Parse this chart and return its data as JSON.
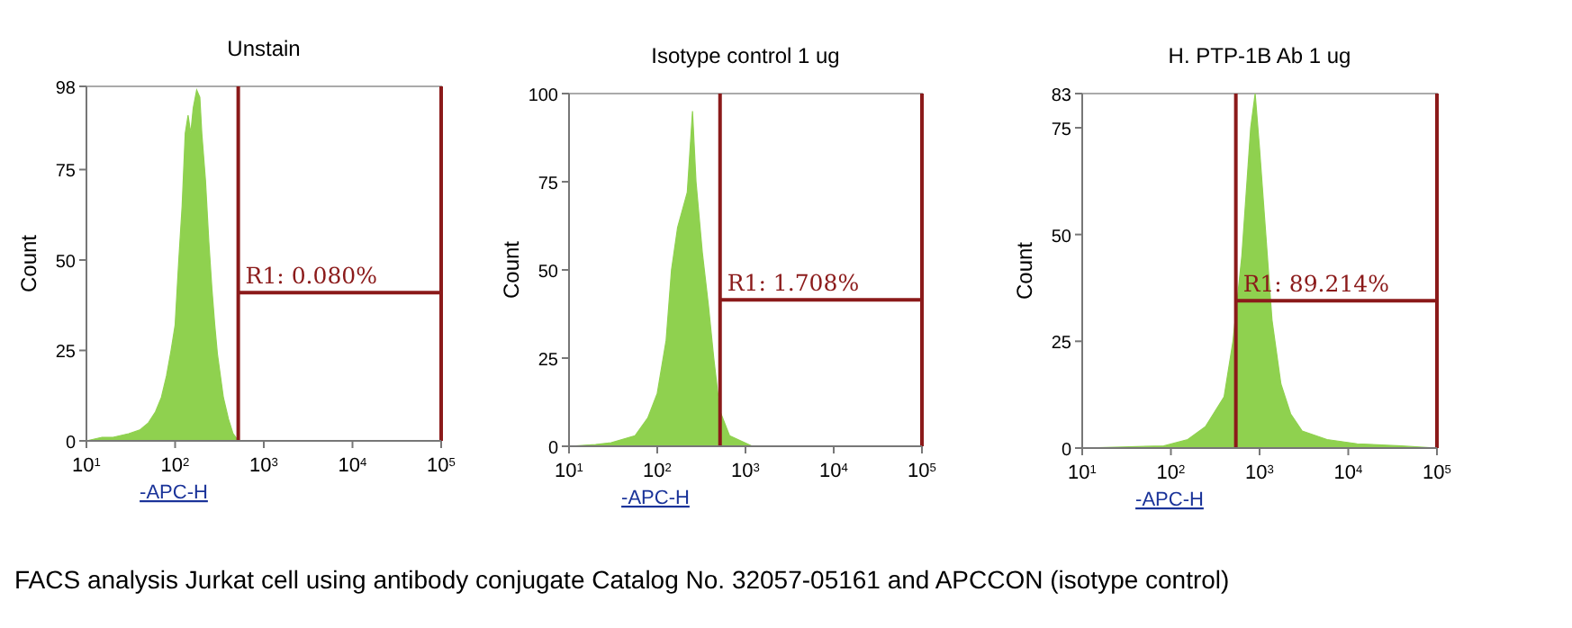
{
  "chart_data": [
    {
      "type": "area",
      "title": "Unstain",
      "xlabel": "-APC-H",
      "ylabel": "Count",
      "log": "x",
      "grid": false,
      "xlim": [
        10,
        100000
      ],
      "ylim": [
        0,
        98
      ],
      "xticks": [
        {
          "value": 10,
          "label": "10$^{1}$"
        },
        {
          "value": 100,
          "label": "10$^{2}$"
        },
        {
          "value": 1000,
          "label": "10$^{3}$"
        },
        {
          "value": 10000,
          "label": "10$^{4}$"
        },
        {
          "value": 100000,
          "label": "10$^{5}$"
        }
      ],
      "yticks": [
        0,
        25,
        50,
        75,
        98
      ],
      "series": [
        {
          "color": "#8fd14f",
          "x": [
            10,
            15,
            20,
            30,
            40,
            50,
            60,
            70,
            80,
            90,
            100,
            110,
            120,
            130,
            140,
            150,
            160,
            175,
            190,
            200,
            220,
            240,
            260,
            280,
            300,
            350,
            400,
            450,
            500,
            550
          ],
          "values": [
            0,
            1,
            1,
            2,
            3,
            5,
            8,
            12,
            18,
            25,
            32,
            50,
            65,
            85,
            90,
            85,
            92,
            97,
            95,
            85,
            72,
            55,
            42,
            32,
            24,
            12,
            6,
            2,
            0.5,
            0
          ]
        },
        {
          "type": "line",
          "color": "#8b1a1a",
          "x": [
            515,
            100000
          ],
          "values": [
            41,
            41
          ]
        }
      ],
      "ref_lines": [
        {
          "axis": "x",
          "value": 515,
          "color": "#8b1a1a"
        },
        {
          "axis": "x",
          "value": 100000,
          "color": "#8b1a1a"
        }
      ],
      "annotations": [
        "R1: 0.080%",
        "FACS analysis Jurkat cell using antibody conjugate Catalog No. 32057-05161 and APCCON (isotype control)"
      ]
    },
    {
      "type": "area",
      "title": "Isotype control 1 ug",
      "xlabel": "-APC-H",
      "ylabel": "Count",
      "log": "x",
      "grid": false,
      "xlim": [
        10,
        100000
      ],
      "ylim": [
        0,
        100
      ],
      "xticks": [
        {
          "value": 10,
          "label": "10$^{1}$"
        },
        {
          "value": 100,
          "label": "10$^{2}$"
        },
        {
          "value": 1000,
          "label": "10$^{3}$"
        },
        {
          "value": 10000,
          "label": "10$^{4}$"
        },
        {
          "value": 100000,
          "label": "10$^{5}$"
        }
      ],
      "yticks": [
        0,
        25,
        50,
        75,
        100
      ],
      "series": [
        {
          "color": "#8fd14f",
          "x": [
            10,
            20,
            30,
            56,
            78,
            100,
            126,
            145,
            170,
            219,
            251,
            275,
            324,
            380,
            437,
            513,
            660,
            980,
            1200
          ],
          "values": [
            0,
            0.5,
            1,
            3,
            8,
            15,
            30,
            50,
            62,
            72,
            95,
            75,
            55,
            40,
            25,
            10,
            3,
            1,
            0
          ]
        },
        {
          "type": "line",
          "color": "#8b1a1a",
          "x": [
            515,
            100000
          ],
          "values": [
            41.5,
            41.5
          ]
        }
      ],
      "ref_lines": [
        {
          "axis": "x",
          "value": 515,
          "color": "#8b1a1a"
        },
        {
          "axis": "x",
          "value": 100000,
          "color": "#8b1a1a"
        }
      ],
      "annotations": [
        "R1: 1.708%"
      ]
    },
    {
      "type": "area",
      "title": "H. PTP-1B Ab 1 ug",
      "xlabel": "-APC-H",
      "ylabel": "Count",
      "log": "x",
      "grid": false,
      "xlim": [
        10,
        100000
      ],
      "ylim": [
        0,
        83
      ],
      "xticks": [
        {
          "value": 10,
          "label": "10$^{1}$"
        },
        {
          "value": 100,
          "label": "10$^{2}$"
        },
        {
          "value": 1000,
          "label": "10$^{3}$"
        },
        {
          "value": 10000,
          "label": "10$^{4}$"
        },
        {
          "value": 100000,
          "label": "10$^{5}$"
        }
      ],
      "yticks": [
        0,
        25,
        50,
        75,
        83
      ],
      "series": [
        {
          "color": "#8fd14f",
          "x": [
            10,
            83,
            155,
            245,
            398,
            501,
            631,
            794,
            891,
            1000,
            1175,
            1380,
            1740,
            2240,
            3020,
            5750,
            12600,
            40000,
            100000
          ],
          "values": [
            0,
            0.5,
            2,
            5,
            12,
            25,
            45,
            75,
            83,
            70,
            50,
            30,
            15,
            8,
            4,
            2,
            1,
            0.5,
            0
          ]
        },
        {
          "type": "line",
          "color": "#8b1a1a",
          "x": [
            540,
            100000
          ],
          "values": [
            34.5,
            34.5
          ]
        }
      ],
      "ref_lines": [
        {
          "axis": "x",
          "value": 540,
          "color": "#8b1a1a"
        },
        {
          "axis": "x",
          "value": 100000,
          "color": "#8b1a1a"
        }
      ],
      "annotations": [
        "R1: 89.214%"
      ]
    }
  ]
}
